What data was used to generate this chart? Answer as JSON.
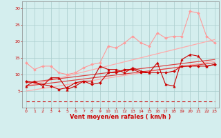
{
  "bg_color": "#d4eeee",
  "grid_color": "#aacccc",
  "xlabel": "Vent moyen/en rafales ( km/h )",
  "xlabel_color": "#cc0000",
  "tick_color": "#cc0000",
  "xlim": [
    -0.5,
    23.5
  ],
  "ylim": [
    0,
    32
  ],
  "yticks": [
    5,
    10,
    15,
    20,
    25,
    30
  ],
  "xticks": [
    0,
    1,
    2,
    3,
    4,
    5,
    6,
    7,
    8,
    9,
    10,
    11,
    12,
    13,
    14,
    15,
    16,
    17,
    18,
    19,
    20,
    21,
    22,
    23
  ],
  "line_straight_lp1": {
    "x": [
      0,
      23
    ],
    "y": [
      5.0,
      14.0
    ],
    "color": "#ffaaaa",
    "lw": 0.9
  },
  "line_straight_lp2": {
    "x": [
      0,
      23
    ],
    "y": [
      6.5,
      20.5
    ],
    "color": "#ffaaaa",
    "lw": 0.9
  },
  "line_straight_dr1": {
    "x": [
      0,
      23
    ],
    "y": [
      6.5,
      13.5
    ],
    "color": "#dd4444",
    "lw": 0.9
  },
  "line_straight_dr2": {
    "x": [
      0,
      23
    ],
    "y": [
      7.5,
      14.5
    ],
    "color": "#dd4444",
    "lw": 0.9
  },
  "series_light_pink": {
    "x": [
      0,
      1,
      2,
      3,
      4,
      5,
      6,
      7,
      8,
      9,
      10,
      11,
      12,
      13,
      14,
      15,
      16,
      17,
      18,
      19,
      20,
      21,
      22,
      23
    ],
    "y": [
      13.5,
      11.5,
      12.5,
      12.5,
      10.5,
      10.0,
      10.5,
      12.0,
      13.0,
      13.5,
      18.5,
      18.0,
      19.5,
      21.5,
      19.5,
      18.5,
      22.5,
      21.0,
      21.5,
      21.5,
      29.0,
      28.5,
      21.5,
      19.5
    ],
    "color": "#ff9999",
    "lw": 0.8,
    "marker": "D",
    "ms": 2.0
  },
  "series_dark_tri": {
    "x": [
      0,
      1,
      2,
      3,
      4,
      5,
      6,
      7,
      8,
      9,
      10,
      11,
      12,
      13,
      14,
      15,
      16,
      17,
      18,
      19,
      20,
      21,
      22,
      23
    ],
    "y": [
      6.5,
      8.0,
      6.5,
      9.0,
      9.0,
      5.5,
      6.5,
      8.0,
      8.0,
      12.5,
      11.5,
      11.5,
      10.5,
      12.0,
      11.0,
      10.5,
      13.5,
      7.0,
      6.5,
      14.5,
      16.0,
      15.5,
      12.5,
      13.0
    ],
    "color": "#cc0000",
    "lw": 0.8,
    "marker": "^",
    "ms": 2.5
  },
  "series_dark_sq": {
    "x": [
      0,
      3,
      4,
      5,
      6,
      7,
      8,
      9,
      10,
      11,
      12,
      13,
      14,
      15,
      16,
      17,
      18,
      19,
      20,
      21,
      22,
      23
    ],
    "y": [
      8.0,
      6.5,
      5.5,
      6.0,
      7.5,
      8.0,
      7.0,
      7.5,
      10.5,
      10.5,
      11.5,
      11.5,
      10.5,
      10.5,
      10.5,
      10.5,
      11.0,
      12.5,
      12.5,
      12.5,
      12.5,
      13.0
    ],
    "color": "#cc0000",
    "lw": 0.8,
    "marker": "D",
    "ms": 2.0
  },
  "series_dashes": {
    "x": [
      0,
      1,
      2,
      3,
      4,
      5,
      6,
      7,
      8,
      9,
      10,
      11,
      12,
      13,
      14,
      15,
      16,
      17,
      18,
      19,
      20,
      21,
      22,
      23
    ],
    "y": [
      1.8,
      1.8,
      1.8,
      1.8,
      1.8,
      1.8,
      1.8,
      1.8,
      1.8,
      1.8,
      1.8,
      1.8,
      1.8,
      1.8,
      1.8,
      1.8,
      1.8,
      1.8,
      1.8,
      1.8,
      1.8,
      1.8,
      1.8,
      1.8
    ],
    "color": "#cc0000",
    "lw": 0.8,
    "ls": "--",
    "dash": [
      4,
      3
    ]
  }
}
